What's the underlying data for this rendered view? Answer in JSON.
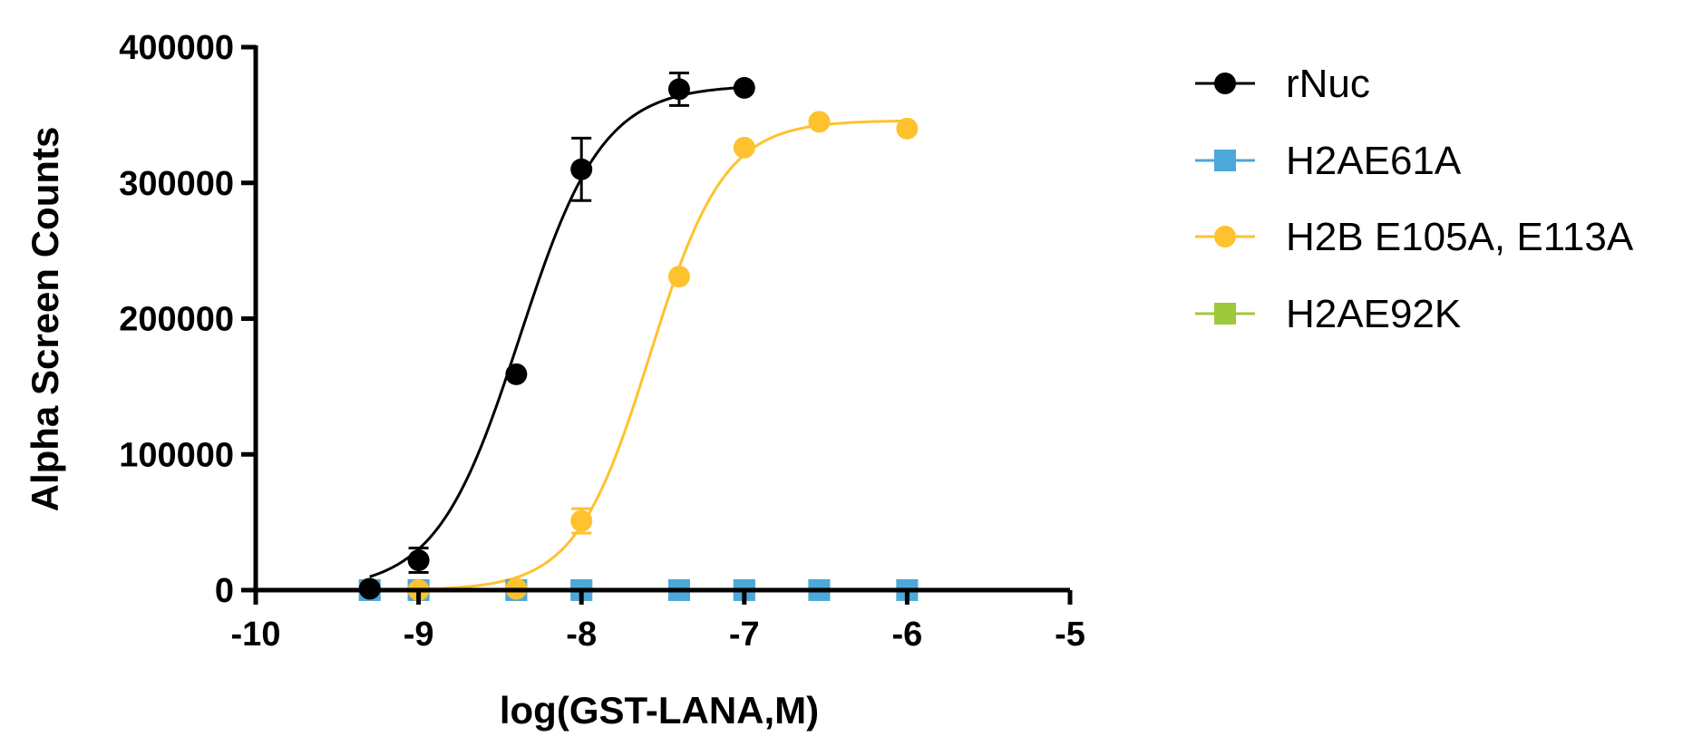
{
  "chart_data": {
    "type": "scatter",
    "title": "",
    "xlabel": "log(GST-LANA,M)",
    "ylabel": "Alpha Screen Counts",
    "xlim": [
      -10,
      -5
    ],
    "ylim": [
      0,
      400000
    ],
    "x_ticks": [
      -10,
      -9,
      -8,
      -7,
      -6,
      -5
    ],
    "x_tick_labels": [
      "-10",
      "-9",
      "-8",
      "-7",
      "-6",
      "-5"
    ],
    "y_ticks": [
      0,
      100000,
      200000,
      300000,
      400000
    ],
    "y_tick_labels": [
      "0",
      "100000",
      "200000",
      "300000",
      "400000"
    ],
    "grid": false,
    "legend_position": "right",
    "series": [
      {
        "name": "rNuc",
        "color": "#000000",
        "marker": "circle",
        "x": [
          -9.3,
          -9.0,
          -8.4,
          -8.0,
          -7.4,
          -7.0
        ],
        "y": [
          1000,
          22000,
          159000,
          310000,
          369000,
          370000
        ],
        "error": [
          0,
          9000,
          0,
          23000,
          12000,
          0
        ],
        "fit": {
          "bottom": 0,
          "top": 372000,
          "logEC50": -8.38,
          "hill": 1.7
        }
      },
      {
        "name": "H2AE61A",
        "color": "#4ea7d9",
        "marker": "square",
        "x": [
          -9.3,
          -9.0,
          -8.4,
          -8.0,
          -7.4,
          -7.0,
          -6.54,
          -6.0
        ],
        "y": [
          0,
          0,
          0,
          0,
          0,
          0,
          0,
          0
        ],
        "error": [
          0,
          0,
          0,
          0,
          0,
          0,
          0,
          0
        ],
        "fit": {
          "bottom": 0,
          "top": 0,
          "logEC50": -8,
          "hill": 1
        }
      },
      {
        "name": "H2B E105A, E113A",
        "color": "#fdc22e",
        "marker": "circle",
        "x": [
          -9.0,
          -8.4,
          -8.0,
          -7.4,
          -7.0,
          -6.54,
          -6.0
        ],
        "y": [
          0,
          1000,
          51000,
          231000,
          326000,
          345000,
          340000
        ],
        "error": [
          0,
          0,
          9000,
          0,
          0,
          0,
          0
        ],
        "fit": {
          "bottom": 0,
          "top": 346000,
          "logEC50": -7.58,
          "hill": 1.9
        }
      },
      {
        "name": "H2AE92K",
        "color": "#9ec93a",
        "marker": "square",
        "x": [
          -9.3,
          -9.0,
          -8.4,
          -8.0,
          -7.4,
          -7.0,
          -6.54,
          -6.0
        ],
        "y": [
          0,
          0,
          0,
          0,
          0,
          0,
          0,
          0
        ],
        "error": [
          0,
          0,
          0,
          0,
          0,
          0,
          0,
          0
        ],
        "fit": {
          "bottom": 0,
          "top": 0,
          "logEC50": -8,
          "hill": 1
        }
      }
    ]
  }
}
